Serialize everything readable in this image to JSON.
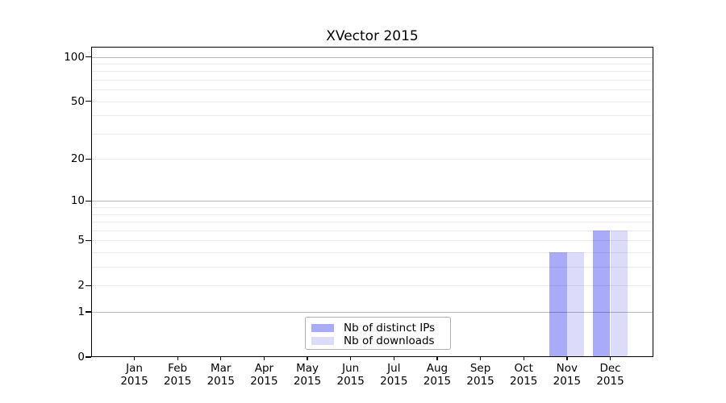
{
  "chart_data": {
    "type": "bar",
    "title": "XVector 2015",
    "categories": [
      {
        "month": "Jan",
        "year": "2015"
      },
      {
        "month": "Feb",
        "year": "2015"
      },
      {
        "month": "Mar",
        "year": "2015"
      },
      {
        "month": "Apr",
        "year": "2015"
      },
      {
        "month": "May",
        "year": "2015"
      },
      {
        "month": "Jun",
        "year": "2015"
      },
      {
        "month": "Jul",
        "year": "2015"
      },
      {
        "month": "Aug",
        "year": "2015"
      },
      {
        "month": "Sep",
        "year": "2015"
      },
      {
        "month": "Oct",
        "year": "2015"
      },
      {
        "month": "Nov",
        "year": "2015"
      },
      {
        "month": "Dec",
        "year": "2015"
      }
    ],
    "series": [
      {
        "name": "Nb of distinct IPs",
        "color": "#aaabf8",
        "values": [
          0,
          0,
          0,
          0,
          0,
          0,
          0,
          0,
          0,
          0,
          4,
          6
        ]
      },
      {
        "name": "Nb of downloads",
        "color": "#dcdcfa",
        "values": [
          0,
          0,
          0,
          0,
          0,
          0,
          0,
          0,
          0,
          0,
          4,
          6
        ]
      }
    ],
    "y_axis": {
      "scale": "log1p",
      "max": 117,
      "labeled_ticks": [
        0,
        1,
        2,
        5,
        10,
        20,
        50,
        100
      ],
      "major_gridlines": [
        1,
        10,
        100
      ],
      "minor_gridlines": [
        2,
        3,
        4,
        5,
        6,
        7,
        8,
        9,
        20,
        30,
        40,
        50,
        60,
        70,
        80,
        90
      ]
    },
    "legend": {
      "position": "lower center"
    },
    "colors": {
      "background": "#ffffff",
      "axis": "#000000",
      "major_grid": "#bababa",
      "minor_grid": "#ebebeb"
    }
  }
}
